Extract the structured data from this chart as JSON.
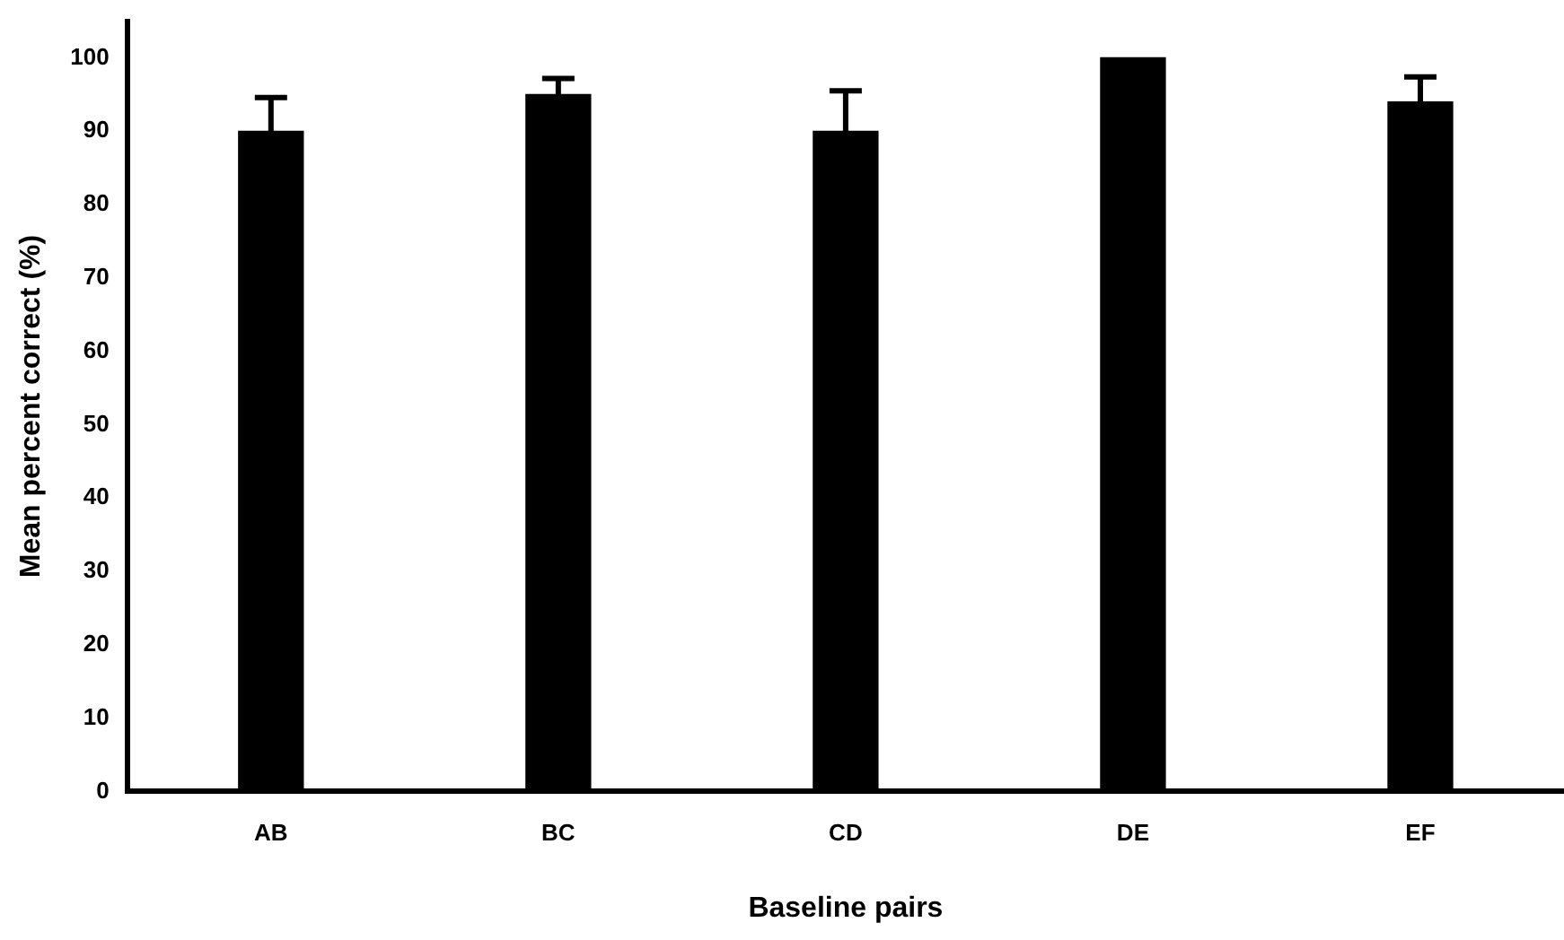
{
  "chart_data": {
    "type": "bar",
    "xlabel": "Baseline pairs",
    "ylabel": "Mean percent correct (%)",
    "categories": [
      "AB",
      "BC",
      "CD",
      "DE",
      "EF"
    ],
    "values": [
      90,
      95,
      90,
      100,
      94
    ],
    "errors": [
      4.6,
      2.2,
      5.5,
      null,
      3.4
    ],
    "color": "#000000",
    "ylim": [
      0,
      105
    ],
    "yticks": [
      0,
      10,
      20,
      30,
      40,
      50,
      60,
      70,
      80,
      90,
      100
    ],
    "grid": false,
    "legend": false
  }
}
